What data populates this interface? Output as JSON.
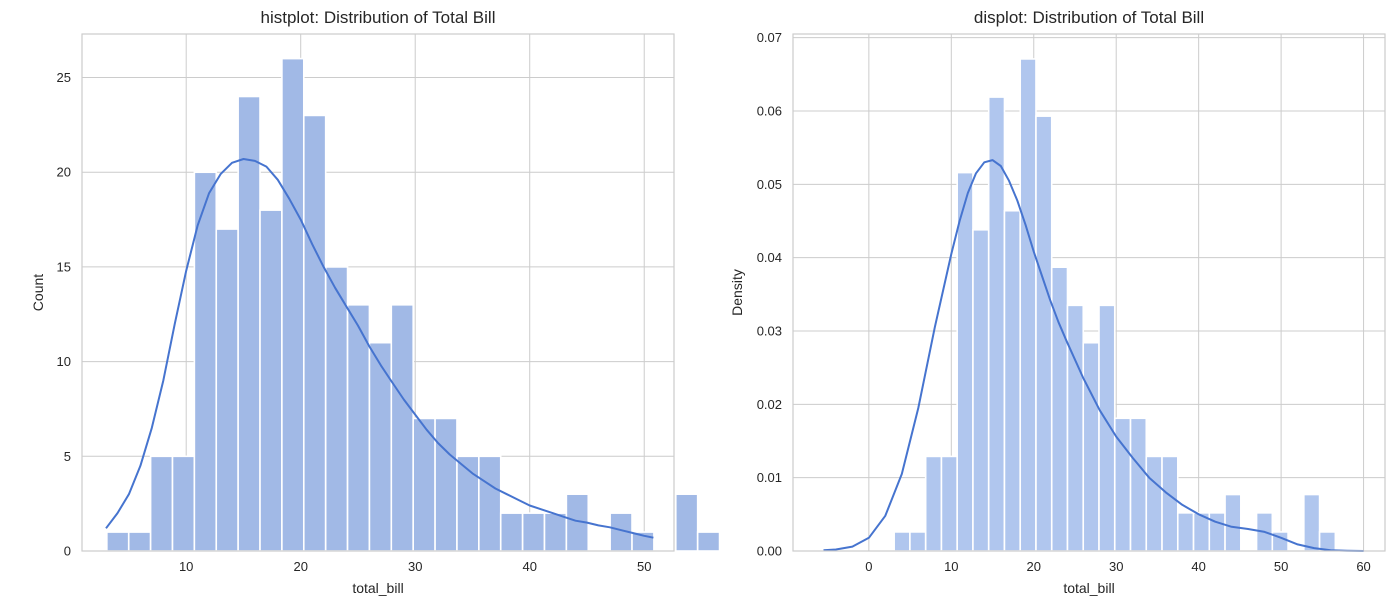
{
  "chart_data": [
    {
      "type": "bar",
      "title": "histplot: Distribution of Total Bill",
      "xlabel": "total_bill",
      "ylabel": "Count",
      "xlim": [
        0.9,
        52.6
      ],
      "ylim": [
        0,
        27.3
      ],
      "xticks": [
        10,
        20,
        30,
        40,
        50
      ],
      "yticks": [
        0,
        5,
        10,
        15,
        20,
        25
      ],
      "grid": true,
      "bar_color": "#a1b9e6",
      "line_color": "#4674cf",
      "bins": {
        "start": 3.07,
        "width": 1.911,
        "values": [
          1,
          1,
          5,
          5,
          20,
          17,
          24,
          18,
          26,
          23,
          15,
          13,
          11,
          13,
          7,
          7,
          5,
          5,
          2,
          2,
          2,
          3,
          0,
          2,
          1,
          0,
          3,
          1
        ]
      },
      "kde_curve": {
        "x": [
          3.0,
          4.0,
          5.0,
          6.0,
          7.0,
          8.0,
          9.0,
          10.0,
          11.0,
          12.0,
          13.0,
          14.0,
          15.0,
          16.0,
          17.0,
          18.0,
          19.0,
          20.0,
          21.0,
          22.0,
          23.0,
          24.0,
          25.0,
          26.0,
          27.0,
          28.0,
          29.0,
          30.0,
          31.0,
          32.0,
          33.0,
          34.0,
          35.0,
          36.0,
          37.0,
          38.0,
          39.0,
          40.0,
          41.0,
          42.0,
          43.0,
          44.0,
          45.0,
          46.0,
          47.0,
          48.0,
          49.0,
          50.0,
          50.8
        ],
        "y": [
          1.2,
          2.0,
          3.0,
          4.5,
          6.5,
          9.0,
          12.0,
          14.8,
          17.2,
          18.9,
          19.9,
          20.5,
          20.7,
          20.6,
          20.3,
          19.6,
          18.6,
          17.5,
          16.2,
          15.0,
          13.9,
          12.9,
          11.9,
          10.8,
          9.8,
          8.9,
          8.0,
          7.2,
          6.4,
          5.7,
          5.1,
          4.6,
          4.1,
          3.7,
          3.3,
          3.0,
          2.7,
          2.4,
          2.2,
          2.0,
          1.8,
          1.6,
          1.5,
          1.35,
          1.25,
          1.1,
          0.95,
          0.8,
          0.7
        ]
      }
    },
    {
      "type": "bar",
      "title": "displot: Distribution of Total Bill",
      "xlabel": "total_bill",
      "ylabel": "Density",
      "xlim": [
        -9.2,
        62.6
      ],
      "ylim": [
        0,
        0.0705
      ],
      "xticks": [
        0,
        10,
        20,
        30,
        40,
        50,
        60
      ],
      "yticks": [
        0.0,
        0.01,
        0.02,
        0.03,
        0.04,
        0.05,
        0.06,
        0.07
      ],
      "ytick_labels": [
        "0.00",
        "0.01",
        "0.02",
        "0.03",
        "0.04",
        "0.05",
        "0.06",
        "0.07"
      ],
      "grid": true,
      "bar_color": "#b0c6ee",
      "line_color": "#4674cf",
      "bins": {
        "start": 3.07,
        "width": 1.911,
        "values": [
          0.0026,
          0.0026,
          0.0129,
          0.0129,
          0.0516,
          0.0438,
          0.0619,
          0.0464,
          0.0671,
          0.0593,
          0.0387,
          0.0335,
          0.0284,
          0.0335,
          0.0181,
          0.0181,
          0.0129,
          0.0129,
          0.0052,
          0.0052,
          0.0052,
          0.0077,
          0.0,
          0.0052,
          0.0026,
          0.0,
          0.0077,
          0.0026
        ]
      },
      "kde_curve": {
        "x": [
          -5.5,
          -4.0,
          -2.0,
          0.0,
          2.0,
          4.0,
          6.0,
          8.0,
          10.0,
          11.0,
          12.0,
          13.0,
          14.0,
          15.0,
          16.0,
          17.0,
          18.0,
          19.0,
          20.0,
          21.0,
          22.0,
          23.0,
          24.0,
          26.0,
          28.0,
          30.0,
          32.0,
          34.0,
          36.0,
          38.0,
          40.0,
          42.0,
          44.0,
          46.0,
          48.0,
          50.0,
          52.0,
          54.0,
          56.0,
          58.0,
          60.0
        ],
        "y": [
          0.0001,
          0.0002,
          0.0006,
          0.0018,
          0.0048,
          0.0105,
          0.0195,
          0.0305,
          0.0405,
          0.045,
          0.0488,
          0.0515,
          0.053,
          0.0533,
          0.0525,
          0.0505,
          0.0478,
          0.0445,
          0.0408,
          0.0375,
          0.0342,
          0.0312,
          0.0286,
          0.0236,
          0.0192,
          0.0156,
          0.0127,
          0.01,
          0.008,
          0.0063,
          0.005,
          0.004,
          0.0033,
          0.003,
          0.0026,
          0.0018,
          0.0009,
          0.0004,
          0.0001,
          3e-05,
          0.0
        ]
      }
    }
  ]
}
